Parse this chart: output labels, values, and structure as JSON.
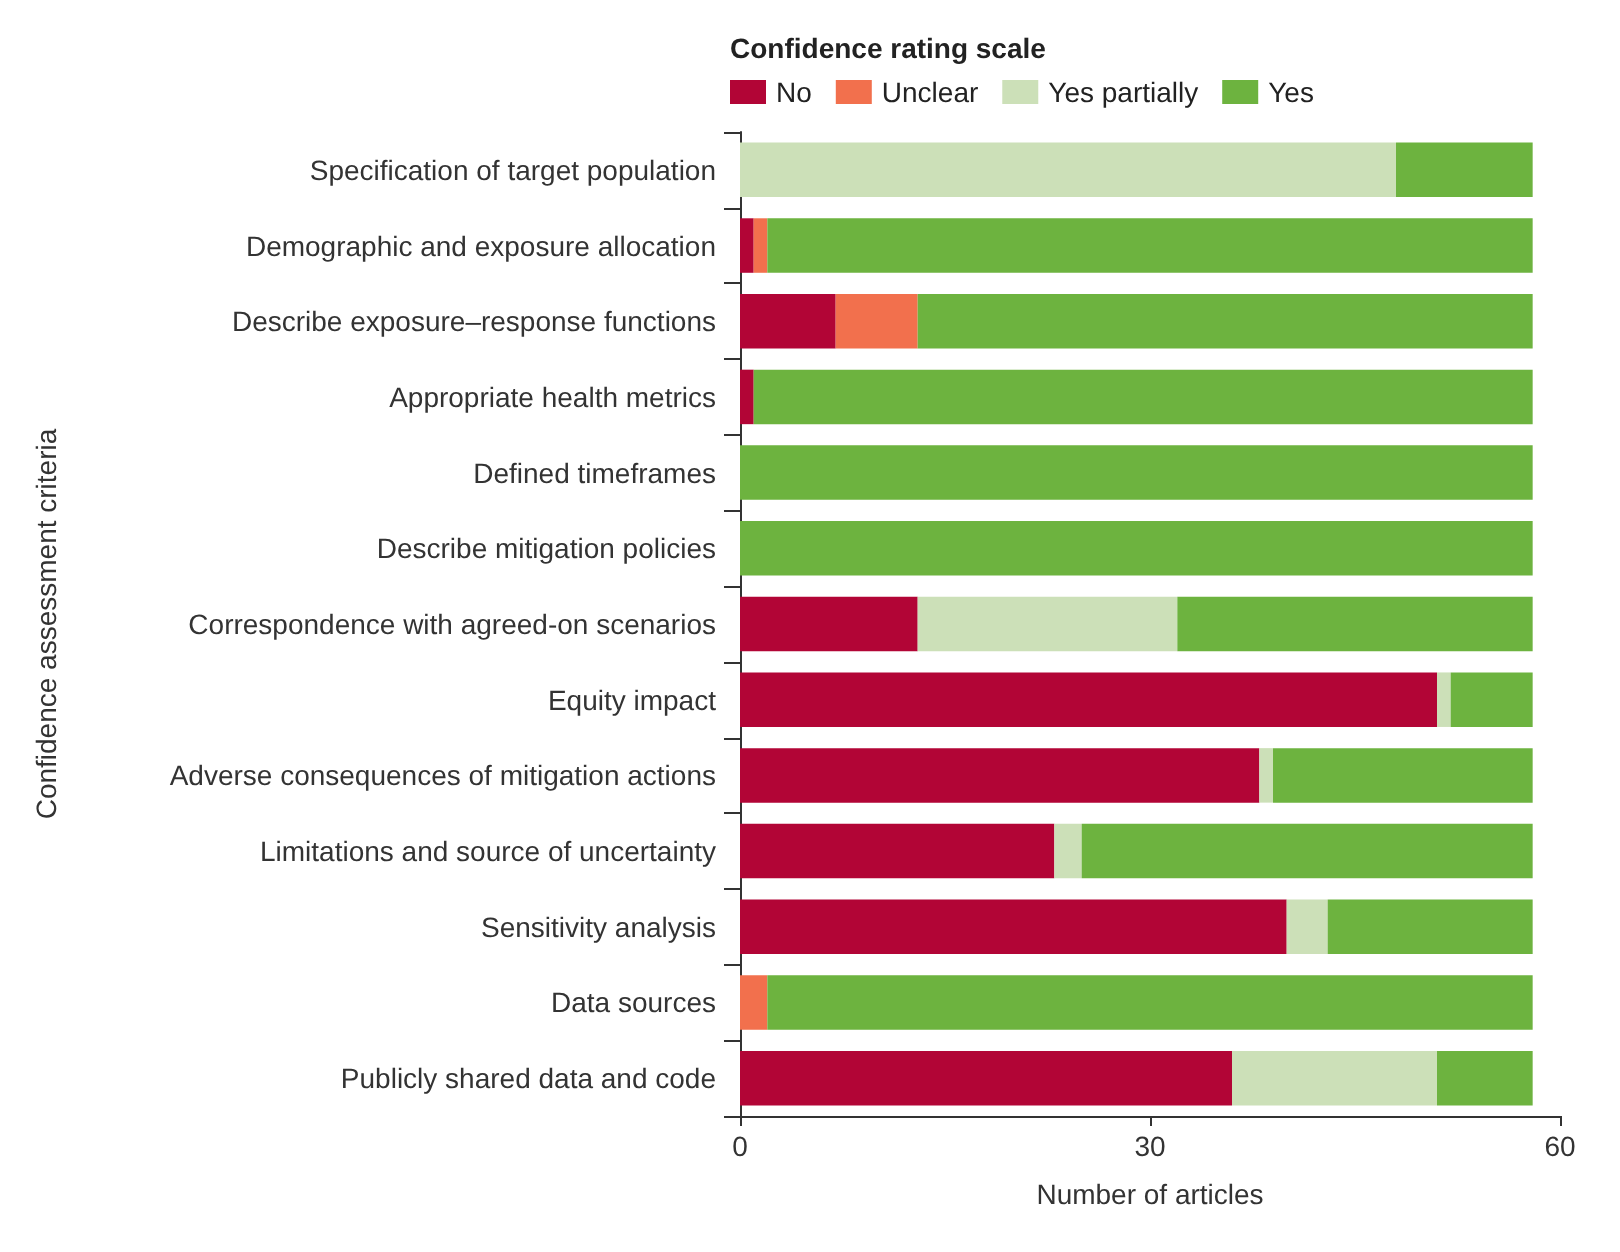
{
  "chart_data": {
    "type": "bar",
    "orientation": "horizontal",
    "stacked": true,
    "legend_title": "Confidence rating scale",
    "legend": "top left",
    "grid": false,
    "xlabel": "Number of articles",
    "ylabel": "Confidence assessment criteria",
    "xlim": [
      0,
      60
    ],
    "xticks": [
      0,
      30,
      60
    ],
    "categories": [
      "Specification of target population",
      "Demographic and exposure allocation",
      "Describe exposure–response functions",
      "Appropriate health metrics",
      "Defined timeframes",
      "Describe mitigation policies",
      "Correspondence with agreed-on scenarios",
      "Equity impact",
      "Adverse consequences of mitigation actions",
      "Limitations and source of uncertainty",
      "Sensitivity analysis",
      "Data sources",
      "Publicly shared data and code"
    ],
    "series": [
      {
        "name": "No",
        "color": "#b20536",
        "values": [
          0,
          1,
          7,
          1,
          0,
          0,
          13,
          51,
          38,
          23,
          40,
          0,
          36
        ]
      },
      {
        "name": "Unclear",
        "color": "#f2704d",
        "values": [
          0,
          1,
          6,
          0,
          0,
          0,
          0,
          0,
          0,
          0,
          0,
          2,
          0
        ]
      },
      {
        "name": "Yes partially",
        "color": "#cce0b8",
        "values": [
          48,
          0,
          0,
          0,
          0,
          0,
          19,
          1,
          1,
          2,
          3,
          0,
          15
        ]
      },
      {
        "name": "Yes",
        "color": "#6db33f",
        "values": [
          10,
          56,
          45,
          57,
          58,
          58,
          26,
          6,
          19,
          33,
          15,
          56,
          7
        ]
      }
    ]
  }
}
